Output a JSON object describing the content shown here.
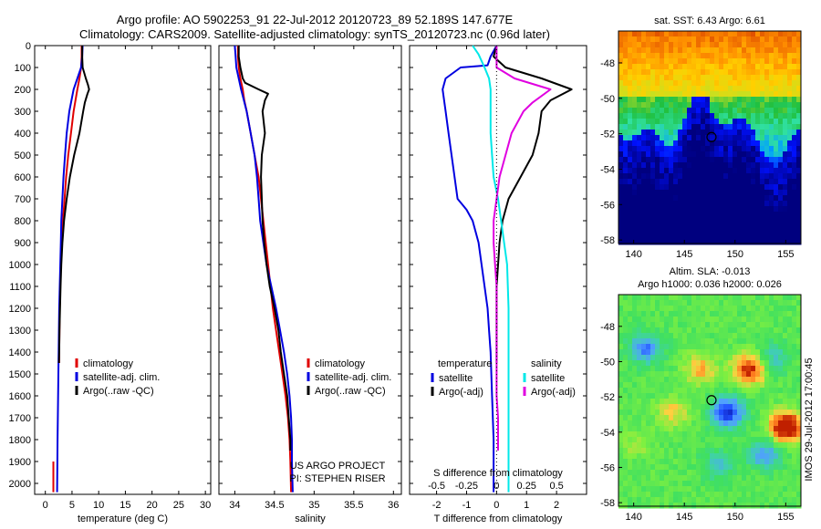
{
  "header": {
    "line1": "Argo profile: AO 5902253_91 22-Jul-2012 20120723_89 52.189S 147.677E",
    "line2": "Climatology: CARS2009. Satellite-adjusted climatology: synTS_20120723.nc (0.96d later)"
  },
  "side_stamp": "IMOS 29-Jul-2012 17:00:45",
  "colors": {
    "red": "#e00000",
    "blue": "#0000e0",
    "black": "#000000",
    "cyan": "#00e8e8",
    "magenta": "#e000e0"
  },
  "chart_data": [
    {
      "type": "line",
      "xlabel": "temperature (deg C)",
      "xlim": [
        -2,
        31
      ],
      "ylim": [
        0,
        2050
      ],
      "xticks": [
        "0",
        "5",
        "10",
        "15",
        "20",
        "25",
        "30"
      ],
      "xtick_values": [
        0,
        5,
        10,
        15,
        20,
        25,
        30
      ],
      "yticks": [
        "0",
        "100",
        "200",
        "300",
        "400",
        "500",
        "600",
        "700",
        "800",
        "900",
        "1000",
        "1100",
        "1200",
        "1300",
        "1400",
        "1500",
        "1600",
        "1700",
        "1800",
        "1900",
        "2000"
      ],
      "ytick_values": [
        0,
        100,
        200,
        300,
        400,
        500,
        600,
        700,
        800,
        900,
        1000,
        1100,
        1200,
        1300,
        1400,
        1500,
        1600,
        1700,
        1800,
        1900,
        2000
      ],
      "legend": [
        "climatology",
        "satellite-adj. clim.",
        "Argo(..raw -QC)"
      ],
      "series": [
        {
          "name": "climatology",
          "color": "red",
          "depth": [
            0,
            50,
            100,
            150,
            200,
            300,
            400,
            500,
            600,
            700,
            800,
            900,
            1000,
            1100,
            1200,
            1300,
            1400,
            1450
          ],
          "values": [
            6.8,
            6.8,
            6.7,
            6.4,
            6.0,
            5.3,
            4.8,
            4.3,
            3.9,
            3.6,
            3.3,
            3.1,
            2.9,
            2.8,
            2.7,
            2.65,
            2.6,
            2.6
          ]
        },
        {
          "name": "climatology",
          "color": "red",
          "depth": [
            1900,
            2040
          ],
          "values": [
            1.5,
            1.5
          ]
        },
        {
          "name": "satellite-adj. clim.",
          "color": "blue",
          "depth": [
            0,
            50,
            100,
            150,
            200,
            300,
            400,
            500,
            600,
            700,
            800,
            900,
            1000,
            1100,
            1200,
            1400,
            1600,
            1800,
            2040
          ],
          "values": [
            7.0,
            6.9,
            6.7,
            6.0,
            5.3,
            4.5,
            4.0,
            3.7,
            3.4,
            3.2,
            3.0,
            2.9,
            2.8,
            2.7,
            2.6,
            2.5,
            2.4,
            2.3,
            2.2
          ]
        },
        {
          "name": "Argo(..raw -QC)",
          "color": "black",
          "depth": [
            0,
            50,
            100,
            150,
            180,
            200,
            220,
            260,
            300,
            400,
            500,
            600,
            700,
            800,
            900,
            1000,
            1100,
            1200,
            1300,
            1400,
            1450
          ],
          "values": [
            6.9,
            6.9,
            7.0,
            7.6,
            8.0,
            8.2,
            7.9,
            7.4,
            7.1,
            6.4,
            5.4,
            4.6,
            4.0,
            3.5,
            3.2,
            3.0,
            2.85,
            2.75,
            2.65,
            2.6,
            2.55
          ]
        }
      ]
    },
    {
      "type": "line",
      "xlabel": "salinity",
      "xlim": [
        33.8,
        36.1
      ],
      "ylim": [
        0,
        2050
      ],
      "xticks": [
        "34",
        "34.5",
        "35",
        "35.5",
        "36"
      ],
      "xtick_values": [
        34,
        34.5,
        35,
        35.5,
        36
      ],
      "legend": [
        "climatology",
        "satellite-adj. clim.",
        "Argo(..raw -QC)"
      ],
      "annotation": [
        "US ARGO PROJECT",
        "PI: STEPHEN RISER"
      ],
      "series": [
        {
          "name": "climatology",
          "color": "red",
          "depth": [
            0,
            50,
            100,
            150,
            200,
            250,
            300,
            400,
            500,
            600,
            700,
            800,
            900,
            1000,
            1100,
            1200,
            1300,
            1400,
            1500,
            1600,
            1700,
            1800,
            1900,
            2040
          ],
          "values": [
            34.04,
            34.04,
            34.05,
            34.07,
            34.1,
            34.12,
            34.15,
            34.2,
            34.25,
            34.3,
            34.33,
            34.36,
            34.39,
            34.42,
            34.45,
            34.48,
            34.52,
            34.56,
            34.6,
            34.64,
            34.67,
            34.69,
            34.7,
            34.71
          ]
        },
        {
          "name": "satellite-adj. clim.",
          "color": "blue",
          "depth": [
            0,
            50,
            100,
            150,
            200,
            300,
            400,
            500,
            600,
            700,
            800,
            900,
            1000,
            1100,
            1200,
            1300,
            1400,
            1500,
            1600,
            1700,
            1800,
            1900,
            2040
          ],
          "values": [
            34.0,
            34.01,
            34.02,
            34.05,
            34.08,
            34.15,
            34.2,
            34.25,
            34.28,
            34.3,
            34.32,
            34.36,
            34.4,
            34.46,
            34.52,
            34.57,
            34.62,
            34.66,
            34.69,
            34.71,
            34.72,
            34.72,
            34.73
          ]
        },
        {
          "name": "Argo(..raw -QC)",
          "color": "black",
          "depth": [
            0,
            50,
            100,
            150,
            170,
            200,
            220,
            250,
            300,
            400,
            500,
            600,
            700,
            800,
            900,
            1000,
            1100,
            1200,
            1300,
            1400,
            1500,
            1600,
            1700,
            1800,
            1850
          ],
          "values": [
            34.05,
            34.05,
            34.07,
            34.1,
            34.13,
            34.3,
            34.42,
            34.38,
            34.35,
            34.38,
            34.34,
            34.33,
            34.34,
            34.35,
            34.37,
            34.4,
            34.44,
            34.5,
            34.55,
            34.58,
            34.62,
            34.66,
            34.68,
            34.7,
            34.7
          ]
        }
      ]
    },
    {
      "type": "line",
      "xlabel": "T difference from climatology",
      "top_axis_label": "S difference from climatology",
      "xlim": [
        -2.9,
        3.0
      ],
      "ylim": [
        0,
        2050
      ],
      "xticks": [
        "-2",
        "-1",
        "0",
        "1",
        "2"
      ],
      "xtick_values": [
        -2,
        -1,
        0,
        1,
        2
      ],
      "s_ticks": [
        "-0.5",
        "-0.25",
        "0",
        "0.25",
        "0.5"
      ],
      "s_tick_values": [
        -0.5,
        -0.25,
        0,
        0.25,
        0.5
      ],
      "s_to_t_factor": 4,
      "legend_temperature": {
        "title": "temperature",
        "items": [
          "satellite",
          "Argo(-adj)"
        ]
      },
      "legend_salinity": {
        "title": "salinity",
        "items": [
          "satellite",
          "Argo(-adj)"
        ]
      },
      "series": [
        {
          "name": "satellite",
          "quantity": "temperature",
          "color": "blue",
          "depth": [
            0,
            50,
            90,
            100,
            150,
            200,
            300,
            400,
            500,
            600,
            700,
            750,
            800,
            900,
            1000,
            1100,
            1200,
            1300,
            1400,
            1600,
            1800,
            2040
          ],
          "t_values": [
            0.0,
            -0.2,
            -0.3,
            -1.2,
            -1.7,
            -1.8,
            -1.7,
            -1.6,
            -1.5,
            -1.4,
            -1.3,
            -1.0,
            -0.8,
            -0.6,
            -0.5,
            -0.4,
            -0.3,
            -0.25,
            -0.2,
            -0.15,
            -0.1,
            -0.1
          ]
        },
        {
          "name": "Argo(-adj)",
          "quantity": "temperature",
          "color": "black",
          "depth": [
            0,
            50,
            100,
            150,
            200,
            250,
            300,
            400,
            500,
            600,
            700,
            800,
            900,
            1000,
            1100,
            1200,
            1300,
            1400,
            1450
          ],
          "t_values": [
            0.0,
            -0.1,
            0.3,
            1.5,
            2.5,
            1.8,
            1.5,
            1.4,
            1.2,
            0.8,
            0.4,
            0.2,
            0.1,
            0.05,
            0.0,
            0.0,
            0.0,
            0.0,
            0.0
          ]
        },
        {
          "name": "satellite",
          "quantity": "salinity",
          "color": "cyan",
          "depth": [
            0,
            40,
            100,
            150,
            200,
            300,
            400,
            500,
            600,
            700,
            800,
            900,
            1000,
            1200,
            1400,
            1600,
            1800,
            2040
          ],
          "t_values": [
            -0.8,
            -0.6,
            -0.4,
            -0.25,
            -0.2,
            -0.2,
            -0.2,
            -0.15,
            -0.1,
            0.05,
            0.15,
            0.25,
            0.35,
            0.4,
            0.4,
            0.4,
            0.4,
            0.4
          ]
        },
        {
          "name": "Argo(-adj)",
          "quantity": "salinity",
          "color": "magenta",
          "depth": [
            0,
            50,
            100,
            150,
            200,
            260,
            300,
            400,
            500,
            600,
            700,
            800,
            900,
            1000,
            1100,
            1200,
            1400,
            1600,
            1700,
            1850
          ],
          "t_values": [
            0.0,
            0.0,
            0.0,
            0.6,
            1.8,
            1.2,
            0.9,
            0.5,
            0.3,
            0.1,
            0.0,
            -0.1,
            -0.1,
            -0.05,
            0.0,
            0.0,
            0.0,
            0.0,
            0.05,
            0.05
          ]
        }
      ]
    },
    {
      "type": "heatmap",
      "title": "sat. SST: 6.43  Argo: 6.61",
      "xlim": [
        138.5,
        156.5
      ],
      "ylim": [
        -58.2,
        -46.2
      ],
      "xticks": [
        "140",
        "145",
        "150",
        "155"
      ],
      "xtick_values": [
        140,
        145,
        150,
        155
      ],
      "yticks": [
        "-48",
        "-50",
        "-52",
        "-54",
        "-56",
        "-58"
      ],
      "ytick_values": [
        -48,
        -50,
        -52,
        -54,
        -56,
        -58
      ],
      "marker": {
        "lon": 147.677,
        "lat": -52.189
      },
      "palette": [
        "#00007f",
        "#0010ff",
        "#00a0ff",
        "#30e0a0",
        "#20c040",
        "#c8e020",
        "#ffd000",
        "#ff9000",
        "#e05000"
      ]
    },
    {
      "type": "heatmap",
      "title": "Altim. SLA: -0.013",
      "subtitle": "Argo h1000: 0.036  h2000: 0.026",
      "xlim": [
        138.5,
        156.5
      ],
      "ylim": [
        -58.2,
        -46.2
      ],
      "xticks": [
        "140",
        "145",
        "150",
        "155"
      ],
      "xtick_values": [
        140,
        145,
        150,
        155
      ],
      "yticks": [
        "-48",
        "-50",
        "-52",
        "-54",
        "-56",
        "-58"
      ],
      "ytick_values": [
        -48,
        -50,
        -52,
        -54,
        -56,
        -58
      ],
      "marker": {
        "lon": 147.677,
        "lat": -52.189
      },
      "palette": [
        "#000090",
        "#2050ff",
        "#50a0ff",
        "#40d0b0",
        "#40e060",
        "#80f040",
        "#ffd040",
        "#ff8020",
        "#c02000"
      ]
    }
  ]
}
